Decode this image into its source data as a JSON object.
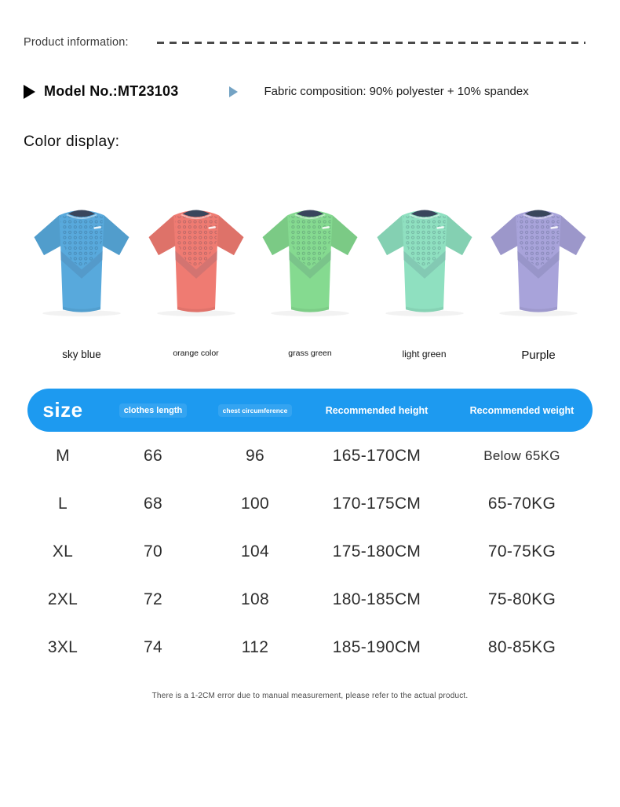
{
  "page": {
    "product_info_label": "Product information:",
    "model_label": "Model No.:MT23103",
    "fabric_label": "Fabric composition: 90% polyester + 10% spandex",
    "color_display_label": "Color display:",
    "footnote": "There is a 1-2CM error due to manual measurement, please refer to the actual product."
  },
  "colors": {
    "table_header_blue": "#1d9af0",
    "items": [
      {
        "name": "sky blue",
        "hex": "#58a9dc"
      },
      {
        "name": "orange color",
        "hex": "#ef7b72"
      },
      {
        "name": "grass green",
        "hex": "#85da90"
      },
      {
        "name": "light green",
        "hex": "#8fe0c0"
      },
      {
        "name": "Purple",
        "hex": "#a8a3da"
      }
    ]
  },
  "size_table": {
    "columns": [
      "size",
      "clothes length",
      "chest circumference",
      "Recommended height",
      "Recommended weight"
    ],
    "rows": [
      [
        "M",
        "66",
        "96",
        "165-170CM",
        "Below 65KG"
      ],
      [
        "L",
        "68",
        "100",
        "170-175CM",
        "65-70KG"
      ],
      [
        "XL",
        "70",
        "104",
        "175-180CM",
        "70-75KG"
      ],
      [
        "2XL",
        "72",
        "108",
        "180-185CM",
        "75-80KG"
      ],
      [
        "3XL",
        "74",
        "112",
        "185-190CM",
        "80-85KG"
      ]
    ]
  },
  "chart_data": {
    "type": "table",
    "title": "size",
    "columns": [
      "size",
      "clothes length",
      "chest circumference",
      "Recommended height",
      "Recommended weight"
    ],
    "rows": [
      [
        "M",
        66,
        96,
        "165-170CM",
        "Below 65KG"
      ],
      [
        "L",
        68,
        100,
        "170-175CM",
        "65-70KG"
      ],
      [
        "XL",
        70,
        104,
        "175-180CM",
        "70-75KG"
      ],
      [
        "2XL",
        72,
        108,
        "180-185CM",
        "75-80KG"
      ],
      [
        "3XL",
        74,
        112,
        "185-190CM",
        "80-85KG"
      ]
    ]
  }
}
